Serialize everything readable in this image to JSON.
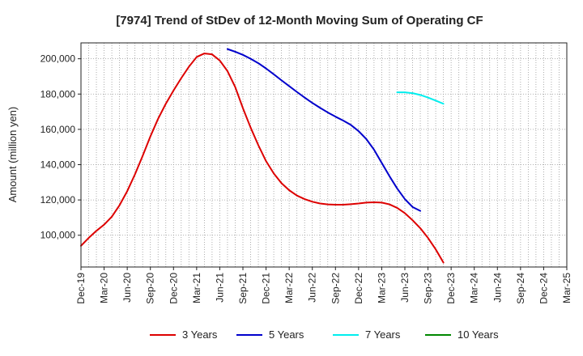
{
  "chart_data": {
    "type": "line",
    "title": "[7974]  Trend of StDev of 12-Month Moving Sum of Operating CF",
    "xlabel": "",
    "ylabel": "Amount (million yen)",
    "ylim": [
      82000,
      209000
    ],
    "yticks": [
      100000,
      120000,
      140000,
      160000,
      180000,
      200000
    ],
    "ytick_labels": [
      "100,000",
      "120,000",
      "140,000",
      "160,000",
      "180,000",
      "200,000"
    ],
    "xtick_labels": [
      "Dec-19",
      "Mar-20",
      "Jun-20",
      "Sep-20",
      "Dec-20",
      "Mar-21",
      "Jun-21",
      "Sep-21",
      "Dec-21",
      "Mar-22",
      "Jun-22",
      "Sep-22",
      "Dec-22",
      "Mar-23",
      "Jun-23",
      "Sep-23",
      "Dec-23",
      "Mar-24",
      "Jun-24",
      "Sep-24",
      "Dec-24",
      "Mar-25"
    ],
    "grid": true,
    "legend_position": "bottom",
    "series": [
      {
        "name": "3 Years",
        "color": "#dd0000",
        "start_index": 0,
        "values": [
          94000,
          98500,
          102500,
          106000,
          110500,
          117000,
          125000,
          134500,
          145000,
          156000,
          166000,
          174500,
          182000,
          189000,
          195500,
          201000,
          203000,
          202500,
          199000,
          193000,
          184000,
          172000,
          161000,
          151000,
          142000,
          135000,
          129500,
          125500,
          122500,
          120500,
          119000,
          118000,
          117500,
          117300,
          117300,
          117600,
          118000,
          118500,
          118700,
          118500,
          117500,
          115500,
          112500,
          108500,
          104000,
          98500,
          92000,
          84500
        ]
      },
      {
        "name": "5 Years",
        "color": "#0000cc",
        "start_index": 19,
        "values": [
          205500,
          204000,
          202200,
          200000,
          197500,
          194500,
          191200,
          187800,
          184500,
          181200,
          178000,
          175000,
          172200,
          169600,
          167200,
          165000,
          162500,
          159000,
          154500,
          148500,
          141000,
          133500,
          126500,
          120500,
          116000,
          113800
        ]
      },
      {
        "name": "7 Years",
        "color": "#00eeee",
        "start_index": 41,
        "values": [
          181000,
          181000,
          180500,
          179500,
          178000,
          176300,
          174500
        ]
      },
      {
        "name": "10 Years",
        "color": "#008800",
        "start_index": 0,
        "values": []
      }
    ]
  }
}
